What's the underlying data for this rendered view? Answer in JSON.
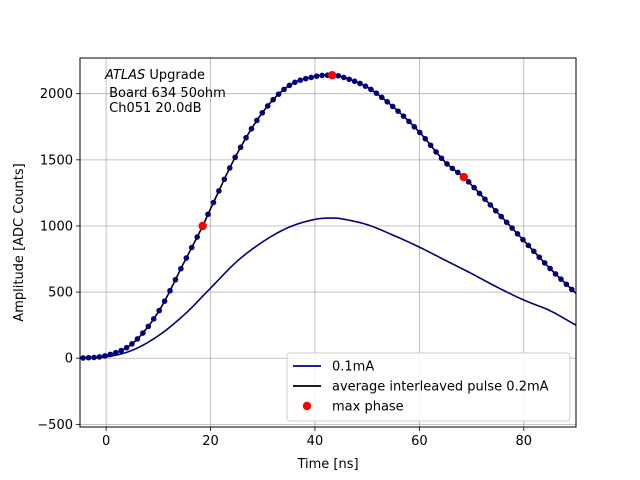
{
  "chart_data": {
    "type": "line",
    "xlabel": "Time [ns]",
    "ylabel": "Amplitude [ADC Counts]",
    "xlim": [
      -5,
      90
    ],
    "ylim": [
      -520,
      2270
    ],
    "xticks": [
      0,
      20,
      40,
      60,
      80
    ],
    "yticks": [
      -500,
      0,
      500,
      1000,
      1500,
      2000
    ],
    "grid": true,
    "annotation": {
      "line1_italic": "ATLAS",
      "line1_rest": " Upgrade",
      "line2": " Board 634 50ohm",
      "line3": " Ch051 20.0dB"
    },
    "legend": {
      "placement": "lower-right",
      "entries": [
        {
          "label": "0.1mA",
          "style": "line",
          "color": "#00007f"
        },
        {
          "label": "average interleaved pulse 0.2mA",
          "style": "line",
          "color": "#000000"
        },
        {
          "label": "max phase",
          "style": "marker",
          "color": "#ff0000"
        }
      ]
    },
    "series": [
      {
        "name": "0.1mA",
        "color": "#00007f",
        "x": [
          -5,
          0,
          5,
          10,
          15,
          20,
          25,
          30,
          35,
          40,
          43,
          45,
          50,
          55,
          60,
          65,
          70,
          75,
          80,
          85,
          90
        ],
        "y": [
          0,
          10,
          60,
          170,
          330,
          530,
          730,
          880,
          990,
          1050,
          1060,
          1055,
          1010,
          930,
          840,
          740,
          640,
          535,
          440,
          360,
          250
        ]
      },
      {
        "name": "average interleaved pulse 0.2mA",
        "color": "#000000",
        "marker_color": "#00007f",
        "x": [
          -5,
          0,
          5,
          10,
          15,
          18.5,
          20,
          25,
          30,
          35,
          40,
          43.3,
          45,
          50,
          55,
          60,
          65,
          68.5,
          70,
          75,
          80,
          85,
          90
        ],
        "y": [
          0,
          20,
          110,
          350,
          730,
          1000,
          1130,
          1540,
          1860,
          2060,
          2130,
          2140,
          2130,
          2050,
          1900,
          1710,
          1480,
          1370,
          1310,
          1100,
          890,
          680,
          490
        ]
      }
    ],
    "max_phase_points": {
      "name": "max phase",
      "color": "#ff0000",
      "x": [
        18.5,
        43.3,
        68.5
      ],
      "y": [
        1000,
        2140,
        1370
      ]
    }
  }
}
